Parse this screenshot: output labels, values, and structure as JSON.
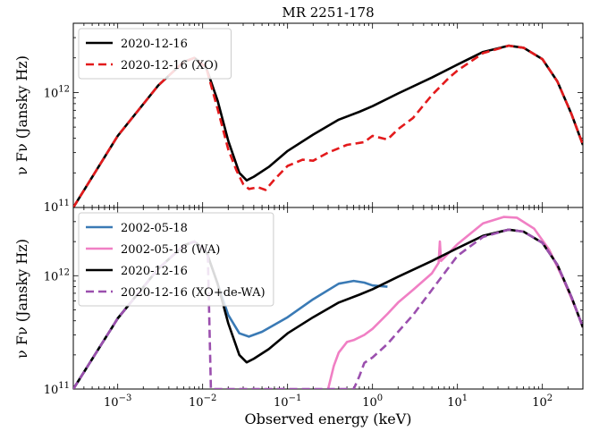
{
  "chart_data": [
    {
      "type": "line",
      "title": "MR 2251-178",
      "xlabel": "",
      "ylabel": "ν Fν (Jansky Hz)",
      "xscale": "log",
      "yscale": "log",
      "xlim": [
        0.0003,
        300
      ],
      "ylim": [
        100000000000.0,
        4000000000000.0
      ],
      "x_tick_labels": [],
      "y_tick_labels": [
        "10^11",
        "10^12"
      ],
      "legend_position": "top-left",
      "series": [
        {
          "name": "2020-12-16",
          "color": "#000000",
          "style": "solid",
          "points": [
            [
              0.0003,
              100000000000.0
            ],
            [
              0.001,
              420000000000.0
            ],
            [
              0.003,
              1150000000000.0
            ],
            [
              0.006,
              1850000000000.0
            ],
            [
              0.008,
              2000000000000.0
            ],
            [
              0.011,
              1650000000000.0
            ],
            [
              0.015,
              850000000000.0
            ],
            [
              0.02,
              380000000000.0
            ],
            [
              0.027,
              200000000000.0
            ],
            [
              0.033,
              172000000000.0
            ],
            [
              0.04,
              185000000000.0
            ],
            [
              0.06,
              225000000000.0
            ],
            [
              0.1,
              310000000000.0
            ],
            [
              0.2,
              430000000000.0
            ],
            [
              0.4,
              580000000000.0
            ],
            [
              0.7,
              680000000000.0
            ],
            [
              1.0,
              760000000000.0
            ],
            [
              2,
              980000000000.0
            ],
            [
              5,
              1350000000000.0
            ],
            [
              10,
              1750000000000.0
            ],
            [
              20,
              2250000000000.0
            ],
            [
              40,
              2550000000000.0
            ],
            [
              60,
              2450000000000.0
            ],
            [
              100,
              1950000000000.0
            ],
            [
              150,
              1250000000000.0
            ],
            [
              220,
              650000000000.0
            ],
            [
              300,
              350000000000.0
            ]
          ]
        },
        {
          "name": "2020-12-16 (XO)",
          "color": "#e31a1c",
          "style": "dashed",
          "points": [
            [
              0.0003,
              100000000000.0
            ],
            [
              0.001,
              420000000000.0
            ],
            [
              0.003,
              1150000000000.0
            ],
            [
              0.006,
              1850000000000.0
            ],
            [
              0.008,
              2000000000000.0
            ],
            [
              0.011,
              1650000000000.0
            ],
            [
              0.015,
              720000000000.0
            ],
            [
              0.02,
              320000000000.0
            ],
            [
              0.025,
              210000000000.0
            ],
            [
              0.03,
              160000000000.0
            ],
            [
              0.035,
              145000000000.0
            ],
            [
              0.045,
              150000000000.0
            ],
            [
              0.055,
              142000000000.0
            ],
            [
              0.07,
              175000000000.0
            ],
            [
              0.1,
              230000000000.0
            ],
            [
              0.15,
              260000000000.0
            ],
            [
              0.2,
              255000000000.0
            ],
            [
              0.3,
              300000000000.0
            ],
            [
              0.5,
              350000000000.0
            ],
            [
              0.8,
              370000000000.0
            ],
            [
              1.0,
              420000000000.0
            ],
            [
              1.5,
              390000000000.0
            ],
            [
              2,
              480000000000.0
            ],
            [
              3,
              600000000000.0
            ],
            [
              5,
              950000000000.0
            ],
            [
              8,
              1350000000000.0
            ],
            [
              10,
              1550000000000.0
            ],
            [
              20,
              2200000000000.0
            ],
            [
              40,
              2550000000000.0
            ],
            [
              60,
              2450000000000.0
            ],
            [
              100,
              1950000000000.0
            ],
            [
              150,
              1250000000000.0
            ],
            [
              220,
              650000000000.0
            ],
            [
              300,
              350000000000.0
            ]
          ]
        }
      ]
    },
    {
      "type": "line",
      "title": "",
      "xlabel": "Observed energy (keV)",
      "ylabel": "ν Fν (Jansky Hz)",
      "xscale": "log",
      "yscale": "log",
      "xlim": [
        0.0003,
        300
      ],
      "ylim": [
        100000000000.0,
        4000000000000.0
      ],
      "x_tick_labels": [
        "10^-3",
        "10^-2",
        "10^-1",
        "10^0",
        "10^1",
        "10^2"
      ],
      "y_tick_labels": [
        "10^11",
        "10^12"
      ],
      "legend_position": "top-left",
      "series": [
        {
          "name": "2002-05-18",
          "color": "#3a7ab5",
          "style": "solid",
          "points": [
            [
              0.0003,
              100000000000.0
            ],
            [
              0.001,
              420000000000.0
            ],
            [
              0.003,
              1150000000000.0
            ],
            [
              0.006,
              1850000000000.0
            ],
            [
              0.008,
              2000000000000.0
            ],
            [
              0.011,
              1650000000000.0
            ],
            [
              0.015,
              850000000000.0
            ],
            [
              0.02,
              450000000000.0
            ],
            [
              0.027,
              310000000000.0
            ],
            [
              0.035,
              290000000000.0
            ],
            [
              0.05,
              320000000000.0
            ],
            [
              0.1,
              430000000000.0
            ],
            [
              0.2,
              620000000000.0
            ],
            [
              0.4,
              850000000000.0
            ],
            [
              0.6,
              900000000000.0
            ],
            [
              0.8,
              870000000000.0
            ],
            [
              1.0,
              820000000000.0
            ],
            [
              1.5,
              800000000000.0
            ]
          ]
        },
        {
          "name": "2002-05-18 (WA)",
          "color": "#f07fc4",
          "style": "solid",
          "points": [
            [
              0.3,
              100000000000.0
            ],
            [
              0.35,
              160000000000.0
            ],
            [
              0.4,
              210000000000.0
            ],
            [
              0.5,
              260000000000.0
            ],
            [
              0.6,
              270000000000.0
            ],
            [
              0.8,
              300000000000.0
            ],
            [
              1.0,
              340000000000.0
            ],
            [
              1.5,
              460000000000.0
            ],
            [
              2,
              580000000000.0
            ],
            [
              3,
              750000000000.0
            ],
            [
              5,
              1050000000000.0
            ],
            [
              6,
              1300000000000.0
            ],
            [
              6.2,
              2000000000000.0
            ],
            [
              6.4,
              1350000000000.0
            ],
            [
              8,
              1600000000000.0
            ],
            [
              10,
              1900000000000.0
            ],
            [
              20,
              2900000000000.0
            ],
            [
              35,
              3300000000000.0
            ],
            [
              50,
              3250000000000.0
            ],
            [
              80,
              2600000000000.0
            ],
            [
              120,
              1700000000000.0
            ],
            [
              180,
              900000000000.0
            ],
            [
              250,
              500000000000.0
            ],
            [
              300,
              350000000000.0
            ]
          ]
        },
        {
          "name": "2020-12-16",
          "color": "#000000",
          "style": "solid",
          "points": [
            [
              0.0003,
              100000000000.0
            ],
            [
              0.001,
              420000000000.0
            ],
            [
              0.003,
              1150000000000.0
            ],
            [
              0.006,
              1850000000000.0
            ],
            [
              0.008,
              2000000000000.0
            ],
            [
              0.011,
              1650000000000.0
            ],
            [
              0.015,
              850000000000.0
            ],
            [
              0.02,
              380000000000.0
            ],
            [
              0.027,
              200000000000.0
            ],
            [
              0.033,
              172000000000.0
            ],
            [
              0.04,
              185000000000.0
            ],
            [
              0.06,
              225000000000.0
            ],
            [
              0.1,
              310000000000.0
            ],
            [
              0.2,
              430000000000.0
            ],
            [
              0.4,
              580000000000.0
            ],
            [
              0.7,
              680000000000.0
            ],
            [
              1.0,
              760000000000.0
            ],
            [
              2,
              980000000000.0
            ],
            [
              5,
              1350000000000.0
            ],
            [
              10,
              1750000000000.0
            ],
            [
              20,
              2250000000000.0
            ],
            [
              40,
              2550000000000.0
            ],
            [
              60,
              2450000000000.0
            ],
            [
              100,
              1950000000000.0
            ],
            [
              150,
              1250000000000.0
            ],
            [
              220,
              650000000000.0
            ],
            [
              300,
              350000000000.0
            ]
          ]
        },
        {
          "name": "2020-12-16 (XO+de-WA)",
          "color": "#9b4fae",
          "style": "dashed",
          "points": [
            [
              0.0003,
              100000000000.0
            ],
            [
              0.001,
              420000000000.0
            ],
            [
              0.003,
              1150000000000.0
            ],
            [
              0.006,
              1850000000000.0
            ],
            [
              0.008,
              2000000000000.0
            ],
            [
              0.0115,
              1600000000000.0
            ],
            [
              0.0125,
              100000000000.0
            ],
            [
              0.6,
              100000000000.0
            ],
            [
              0.7,
              130000000000.0
            ],
            [
              0.8,
              170000000000.0
            ],
            [
              1.0,
              190000000000.0
            ],
            [
              1.5,
              250000000000.0
            ],
            [
              2,
              320000000000.0
            ],
            [
              3,
              450000000000.0
            ],
            [
              5,
              750000000000.0
            ],
            [
              8,
              1200000000000.0
            ],
            [
              10,
              1500000000000.0
            ],
            [
              20,
              2200000000000.0
            ],
            [
              40,
              2550000000000.0
            ],
            [
              60,
              2450000000000.0
            ],
            [
              100,
              1950000000000.0
            ],
            [
              150,
              1250000000000.0
            ],
            [
              220,
              650000000000.0
            ],
            [
              300,
              350000000000.0
            ]
          ]
        }
      ]
    }
  ]
}
